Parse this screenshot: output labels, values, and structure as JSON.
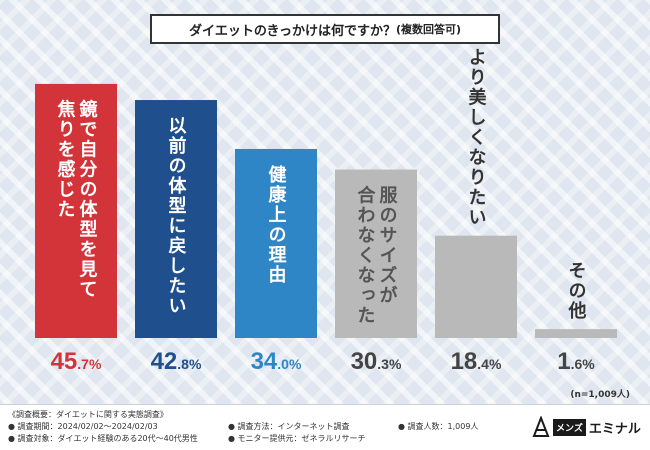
{
  "title": "ダイエットのきっかけは何ですか？",
  "subtitle": "(複数回答可)",
  "note": "(n=1,009人)",
  "colors": {
    "red": "#d2343a",
    "navy": "#1f4f8c",
    "blue": "#2f86c6",
    "gray": "#b9b9b9"
  },
  "chart_data": {
    "type": "bar",
    "title": "ダイエットのきっかけは何ですか？(複数回答可)",
    "categories": [
      "鏡で自分の体型を見て焦りを感じた",
      "以前の体型に戻したい",
      "健康上の理由",
      "服のサイズが合わなくなった",
      "より美しくなりたい",
      "その他"
    ],
    "values": [
      45.7,
      42.8,
      34.0,
      30.3,
      18.4,
      1.6
    ],
    "value_labels": [
      "45.7%",
      "42.8%",
      "34.0%",
      "30.3%",
      "18.4%",
      "1.6%"
    ],
    "label_lines": [
      [
        "鏡で自分の体型を見て",
        "焦りを感じた"
      ],
      [
        "以前の体型に戻したい"
      ],
      [
        "健康上の理由"
      ],
      [
        "服のサイズが",
        "合わなくなった"
      ],
      [
        "より美しくなりたい"
      ],
      [
        "その他"
      ]
    ],
    "ylim": [
      0,
      50
    ],
    "xlabel": "",
    "ylabel": ""
  },
  "footer": {
    "overview": "《調査概要：ダイエットに関する実態調査》",
    "period": "● 調査期間：2024/02/02～2024/02/03",
    "target": "● 調査対象：ダイエット経験のある20代～40代男性",
    "method": "● 調査方法：インターネット調査",
    "provider": "● モニター提供元：ゼネラルリサーチ",
    "count": "● 調査人数：1,009人"
  },
  "logo": {
    "mens": "メンズ",
    "name": "エミナル"
  }
}
